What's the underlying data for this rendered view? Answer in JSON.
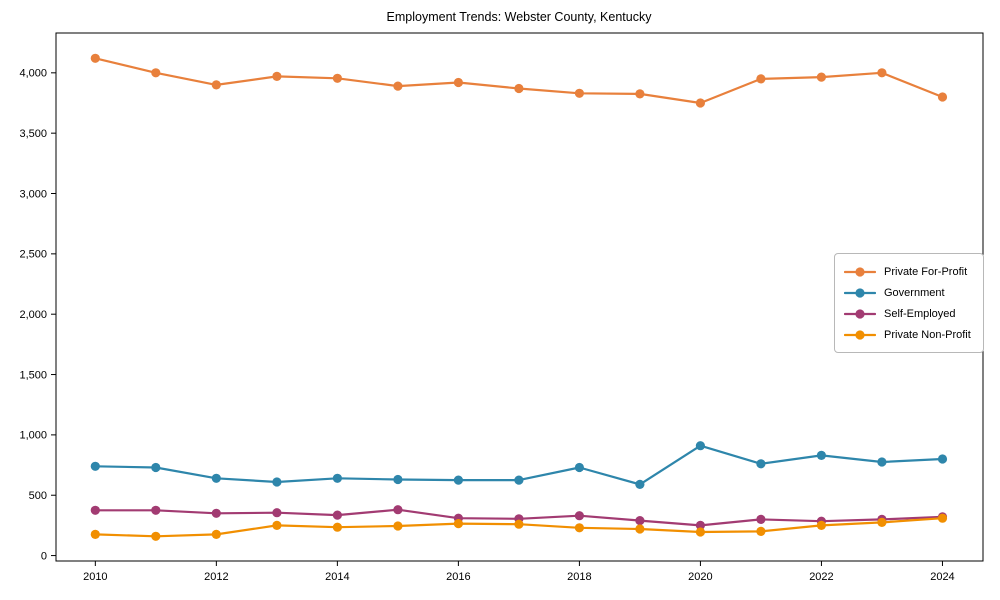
{
  "chart_data": {
    "type": "line",
    "title": "Employment Trends: Webster County, Kentucky",
    "xlabel": "",
    "ylabel": "",
    "x": [
      2010,
      2011,
      2012,
      2013,
      2014,
      2015,
      2016,
      2017,
      2018,
      2019,
      2020,
      2021,
      2022,
      2023,
      2024
    ],
    "series": [
      {
        "name": "Private For-Profit",
        "color": "#E8803C",
        "values": [
          4120,
          4000,
          3900,
          3970,
          3955,
          3890,
          3920,
          3870,
          3830,
          3825,
          3750,
          3950,
          3965,
          4000,
          3800
        ]
      },
      {
        "name": "Government",
        "color": "#2E86AB",
        "values": [
          740,
          730,
          640,
          610,
          640,
          630,
          625,
          625,
          730,
          590,
          910,
          760,
          830,
          775,
          800
        ]
      },
      {
        "name": "Self-Employed",
        "color": "#A23B72",
        "values": [
          375,
          375,
          350,
          355,
          335,
          380,
          310,
          305,
          330,
          290,
          250,
          300,
          285,
          300,
          320
        ]
      },
      {
        "name": "Private Non-Profit",
        "color": "#F18F01",
        "values": [
          175,
          160,
          175,
          250,
          235,
          245,
          265,
          260,
          230,
          220,
          195,
          200,
          250,
          275,
          310
        ]
      }
    ],
    "xticks": [
      2010,
      2012,
      2014,
      2016,
      2018,
      2020,
      2022,
      2024
    ],
    "xtick_labels": [
      "2010",
      "2012",
      "2014",
      "2016",
      "2018",
      "2020",
      "2022",
      "2024"
    ],
    "yticks": [
      0,
      500,
      1000,
      1500,
      2000,
      2500,
      3000,
      3500,
      4000
    ],
    "ytick_labels": [
      "0",
      "500",
      "1,000",
      "1,500",
      "2,000",
      "2,500",
      "3,000",
      "3,500",
      "4,000"
    ],
    "xlim": [
      2009.35,
      2024.67
    ],
    "ylim": [
      -45,
      4330
    ],
    "grid": false,
    "legend_position": "center right",
    "axis_color": "#000000",
    "text_color": "#000000"
  }
}
